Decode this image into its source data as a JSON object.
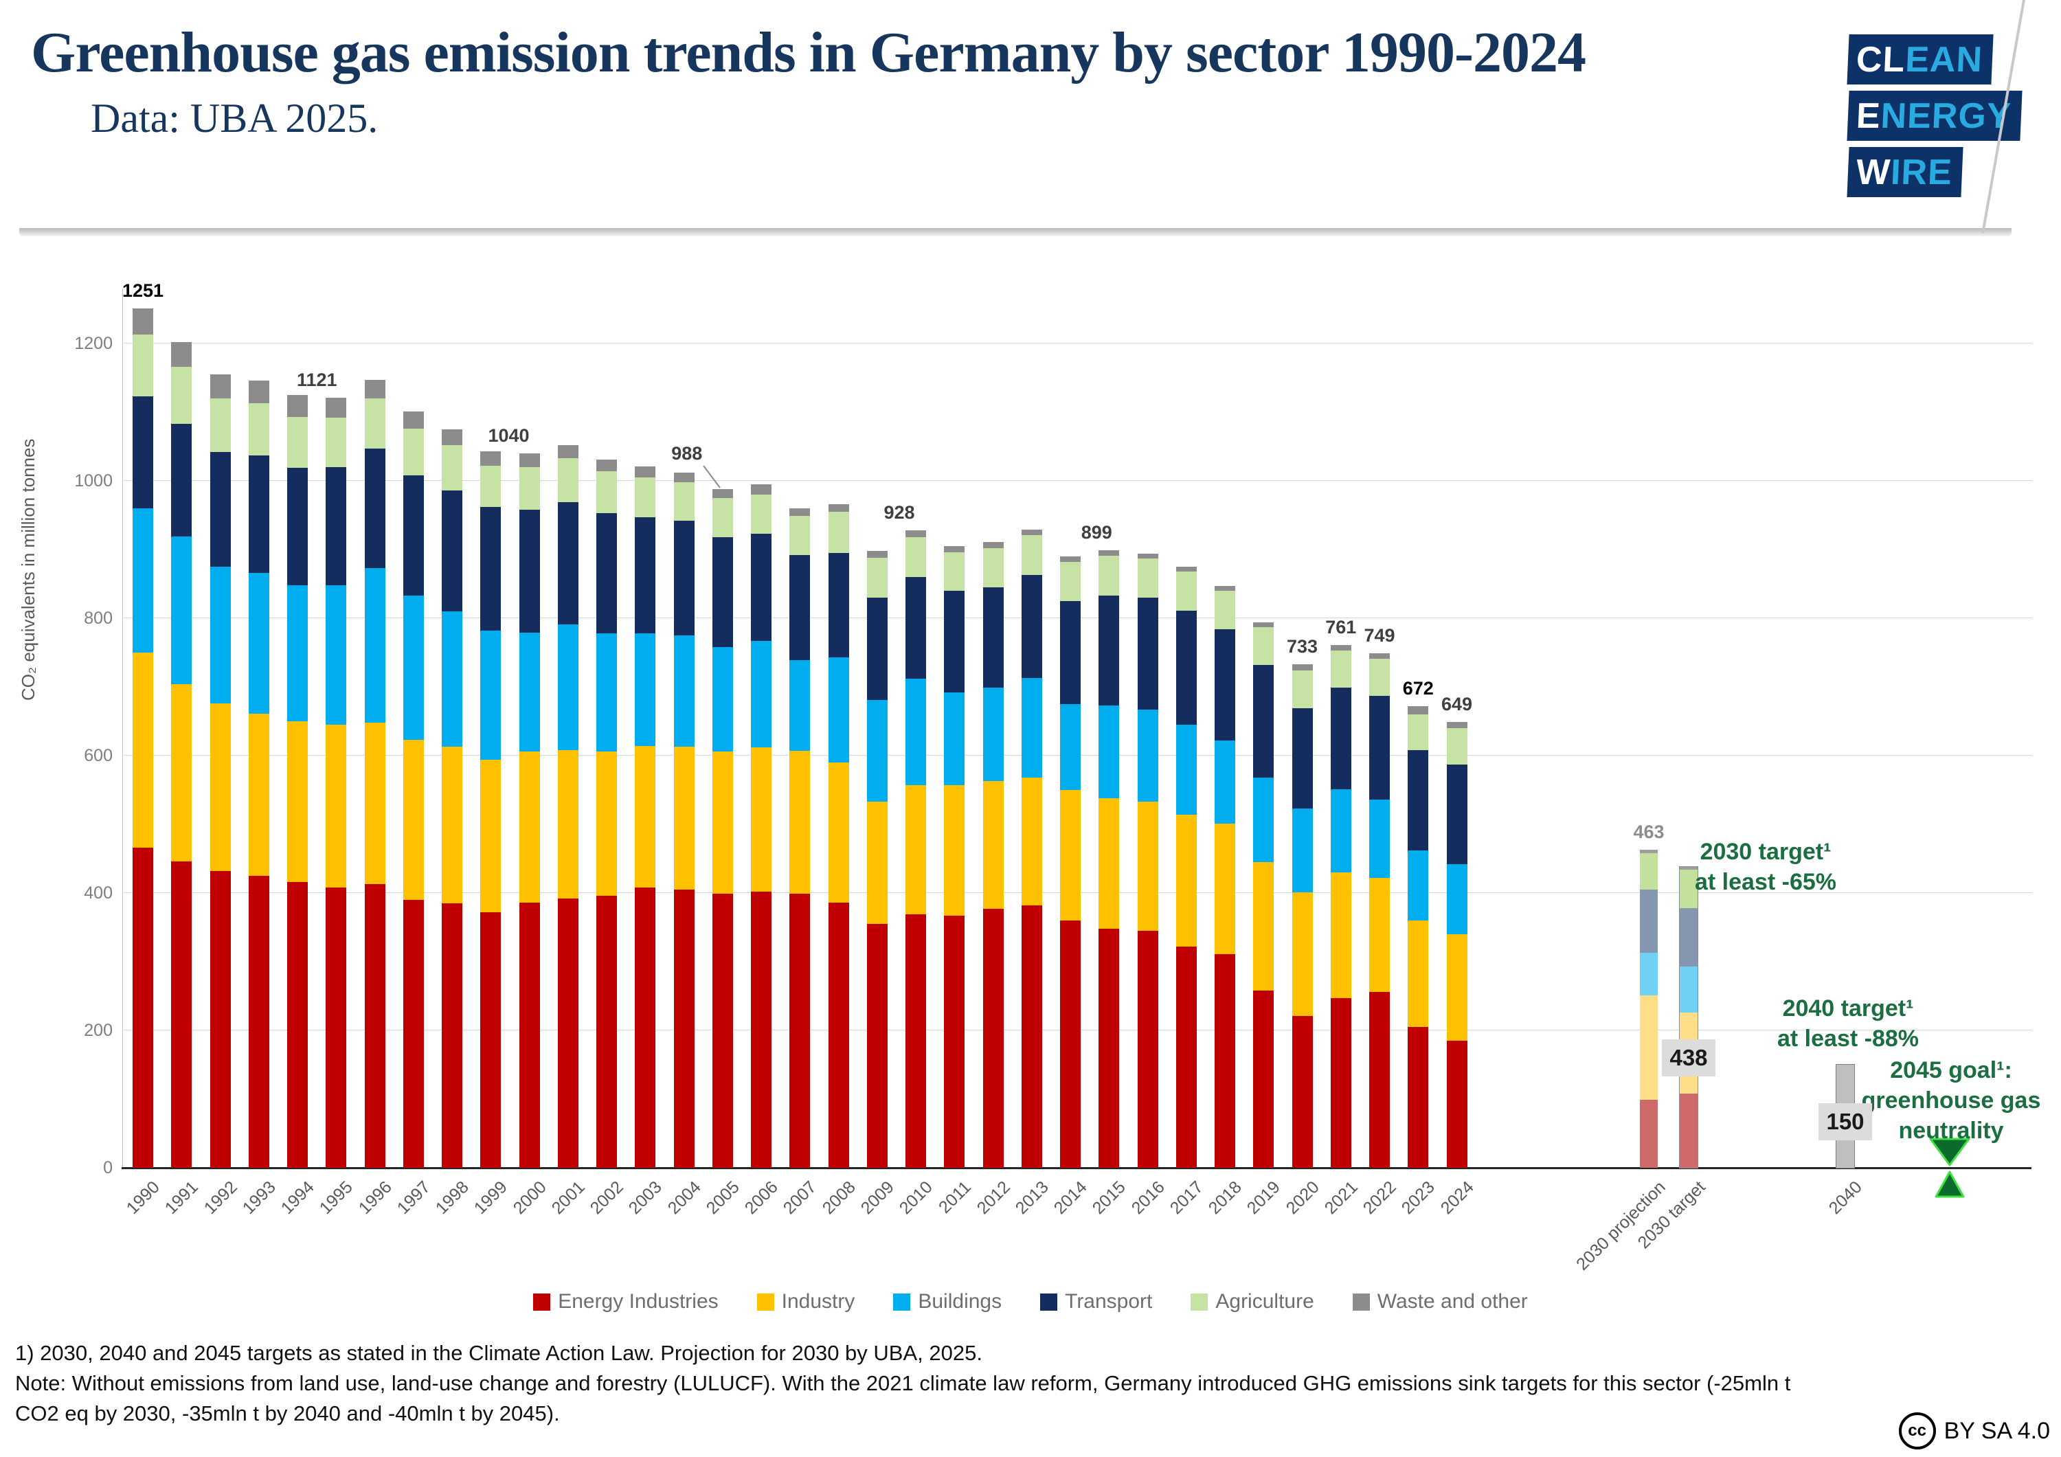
{
  "header": {
    "title": "Greenhouse gas emission trends in Germany by sector 1990-2024",
    "subtitle": "Data: UBA 2025.",
    "logo": {
      "rows": [
        {
          "white": "CL",
          "blue": "EAN"
        },
        {
          "white": "E",
          "blue": "NERGY"
        },
        {
          "white": "W",
          "blue": "IRE"
        }
      ],
      "navy": "#0d3268",
      "light_blue": "#29abe2"
    }
  },
  "chart_data": {
    "type": "bar",
    "stacked": true,
    "title": "Greenhouse gas emission trends in Germany by sector 1990-2024",
    "ylabel": "CO₂ equivalents in million tonnes",
    "xlabel": "",
    "ylim": [
      0,
      1280
    ],
    "yticks": [
      0,
      200,
      400,
      600,
      800,
      1000,
      1200
    ],
    "grid": true,
    "legend_position": "bottom",
    "categories": [
      "1990",
      "1991",
      "1992",
      "1993",
      "1994",
      "1995",
      "1996",
      "1997",
      "1998",
      "1999",
      "2000",
      "2001",
      "2002",
      "2003",
      "2004",
      "2005",
      "2006",
      "2007",
      "2008",
      "2009",
      "2010",
      "2011",
      "2012",
      "2013",
      "2014",
      "2015",
      "2016",
      "2017",
      "2018",
      "2019",
      "2020",
      "2021",
      "2022",
      "2023",
      "2024"
    ],
    "series": [
      {
        "name": "Energy Industries",
        "values": [
          466,
          446,
          432,
          425,
          416,
          408,
          413,
          390,
          385,
          372,
          386,
          392,
          396,
          408,
          405,
          399,
          402,
          399,
          386,
          355,
          369,
          367,
          377,
          382,
          360,
          348,
          345,
          322,
          311,
          258,
          221,
          247,
          256,
          205,
          185
        ]
      },
      {
        "name": "Industry",
        "values": [
          284,
          258,
          244,
          236,
          234,
          237,
          235,
          233,
          228,
          222,
          220,
          216,
          210,
          206,
          208,
          207,
          210,
          208,
          204,
          178,
          188,
          190,
          186,
          186,
          190,
          190,
          188,
          192,
          190,
          187,
          180,
          183,
          166,
          155,
          155
        ]
      },
      {
        "name": "Buildings",
        "values": [
          210,
          215,
          199,
          205,
          198,
          203,
          225,
          210,
          197,
          188,
          173,
          183,
          172,
          164,
          162,
          152,
          155,
          132,
          153,
          148,
          155,
          135,
          136,
          145,
          125,
          135,
          134,
          131,
          121,
          123,
          122,
          121,
          114,
          102,
          102
        ]
      },
      {
        "name": "Transport",
        "values": [
          163,
          164,
          167,
          171,
          171,
          172,
          174,
          175,
          176,
          180,
          179,
          178,
          175,
          169,
          167,
          160,
          156,
          153,
          152,
          149,
          148,
          148,
          146,
          150,
          150,
          160,
          163,
          166,
          162,
          164,
          146,
          148,
          151,
          146,
          145
        ]
      },
      {
        "name": "Agriculture",
        "values": [
          90,
          83,
          78,
          76,
          74,
          72,
          73,
          68,
          66,
          60,
          62,
          64,
          61,
          58,
          56,
          57,
          57,
          57,
          60,
          58,
          58,
          56,
          57,
          58,
          57,
          58,
          57,
          57,
          56,
          55,
          55,
          54,
          54,
          52,
          53
        ]
      },
      {
        "name": "Waste and other",
        "values": [
          38,
          36,
          35,
          33,
          32,
          29,
          27,
          25,
          23,
          21,
          20,
          19,
          17,
          16,
          14,
          13,
          15,
          11,
          11,
          10,
          10,
          9,
          9,
          8,
          8,
          8,
          7,
          7,
          7,
          7,
          9,
          8,
          8,
          12,
          9
        ]
      }
    ],
    "totals": {
      "1990": 1251,
      "1995": 1121,
      "2000": 1040,
      "2005": 988,
      "2010": 928,
      "2015": 899,
      "2020": 733,
      "2021": 761,
      "2022": 749,
      "2023": 672,
      "2024": 649
    },
    "total_labels": [
      {
        "cat": "1990",
        "text": "1251",
        "bold": true,
        "dx": 0
      },
      {
        "cat": "1995",
        "text": "1121",
        "dx": -28
      },
      {
        "cat": "2000",
        "text": "1040",
        "dx": -30
      },
      {
        "cat": "2005",
        "text": "988",
        "dx": -52,
        "raise": 26,
        "leader": true
      },
      {
        "cat": "2010",
        "text": "928",
        "dx": -24
      },
      {
        "cat": "2015",
        "text": "899",
        "dx": -18
      },
      {
        "cat": "2020",
        "text": "733",
        "dx": 0
      },
      {
        "cat": "2021",
        "text": "761",
        "dx": 0
      },
      {
        "cat": "2022",
        "text": "749",
        "dx": 0
      },
      {
        "cat": "2023",
        "text": "672",
        "bold": true,
        "dx": 0
      },
      {
        "cat": "2024",
        "text": "649",
        "dx": 0
      },
      {
        "cat": "2030 projection",
        "text": "463",
        "gray": true,
        "dx": 0
      }
    ],
    "specials": [
      {
        "label": "2030 projection",
        "values": [
          99,
          152,
          62,
          92,
          53,
          5
        ],
        "palette": "muted",
        "total": 463
      },
      {
        "label": "2030 target",
        "values": [
          108,
          118,
          67,
          85,
          56,
          4
        ],
        "palette": "muted",
        "outlined": true,
        "total": 438,
        "value_box": {
          "text": "438",
          "center_value": 160
        }
      },
      {
        "label": "2040",
        "values": [
          150
        ],
        "palette": "gray",
        "total": 150,
        "value_box": {
          "text": "150",
          "center_value": 67
        }
      }
    ],
    "green_annotations": [
      {
        "lines": [
          "2030 target¹",
          "at least -65%"
        ]
      },
      {
        "lines": [
          "2040 target¹",
          "at least -88%"
        ]
      },
      {
        "lines": [
          "2045 goal¹:",
          "greenhouse gas",
          "neutrality"
        ]
      }
    ],
    "marker_2045": {
      "type": "hourglass",
      "fill": "#0b6b2d",
      "glow": "#3fe03f"
    },
    "colors": {
      "main": [
        "#c00000",
        "#ffc000",
        "#00aeef",
        "#142c5e",
        "#c6e2a5",
        "#8c8c8c"
      ],
      "muted": [
        "#cf6a6a",
        "#ffde8a",
        "#70d1f4",
        "#8496b0",
        "#c3e09c",
        "#9e9e9e"
      ],
      "target_gray_fill": "#bfbfbf",
      "target_gray_border": "#7f7f7f",
      "value_box_bg": "#dcdcdc",
      "green_text": "#1b6e3f",
      "grid": "#d9d9d9"
    }
  },
  "legend": {
    "items": [
      {
        "label": "Energy Industries",
        "color": "#c00000"
      },
      {
        "label": "Industry",
        "color": "#ffc000"
      },
      {
        "label": "Buildings",
        "color": "#00aeef"
      },
      {
        "label": "Transport",
        "color": "#142c5e"
      },
      {
        "label": "Agriculture",
        "color": "#c6e2a5"
      },
      {
        "label": "Waste and other",
        "color": "#8c8c8c"
      }
    ]
  },
  "footnotes": {
    "line1": "1) 2030, 2040 and 2045 targets as stated in the Climate Action Law. Projection for 2030 by UBA, 2025.",
    "line2": "Note: Without emissions from land use, land-use change and forestry (LULUCF). With the 2021 climate law reform, Germany introduced GHG emissions sink targets for this sector (-25mln t",
    "line3": "CO2 eq by 2030, -35mln t by 2040 and -40mln t by 2045)."
  },
  "license": {
    "icon_text": "cc",
    "label": "BY SA 4.0"
  }
}
